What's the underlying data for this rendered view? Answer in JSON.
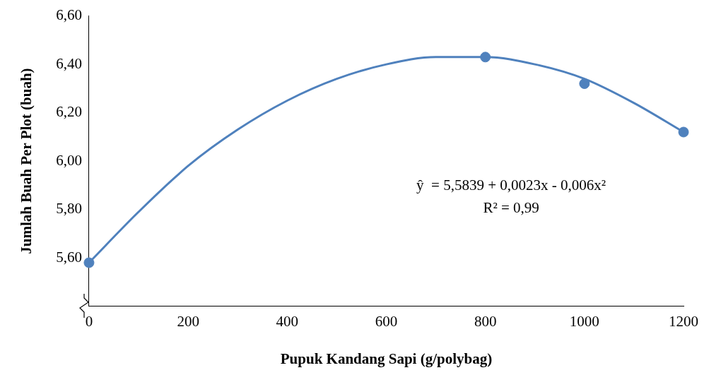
{
  "chart_data": {
    "type": "scatter",
    "xlabel": "Pupuk Kandang Sapi (g/polybag)",
    "ylabel": "Jumlah Buah Per Plot (buah)",
    "series": [
      {
        "type": "scatter",
        "color": "#4f81bd",
        "marker": "circle",
        "x": [
          0,
          800,
          1000,
          1200
        ],
        "values": [
          5.58,
          6.43,
          6.32,
          6.12
        ]
      },
      {
        "type": "line",
        "color": "#4f81bd",
        "marker": "none",
        "line_style": "solid",
        "x": [
          0,
          100,
          200,
          300,
          400,
          500,
          600,
          700,
          800,
          900,
          1000,
          1100,
          1200
        ],
        "values": [
          5.58,
          5.79,
          5.98,
          6.13,
          6.25,
          6.34,
          6.4,
          6.43,
          6.43,
          6.4,
          6.34,
          6.24,
          6.12
        ]
      }
    ],
    "xlim": [
      0,
      1200
    ],
    "xticks": [
      0,
      200,
      400,
      600,
      800,
      1000,
      1200
    ],
    "ylim": [
      5.4,
      6.6
    ],
    "yticks": [
      {
        "value": 5.6,
        "label": "5,60"
      },
      {
        "value": 5.8,
        "label": "5,80"
      },
      {
        "value": 6.0,
        "label": "6,00"
      },
      {
        "value": 6.2,
        "label": "6,20"
      },
      {
        "value": 6.4,
        "label": "6,40"
      },
      {
        "value": 6.6,
        "label": "6,60"
      }
    ],
    "annotations": [
      "ŷ  = 5,5839 + 0,0023x - 0,006x²",
      "R² = 0,99"
    ],
    "grid": false,
    "legend": false
  }
}
